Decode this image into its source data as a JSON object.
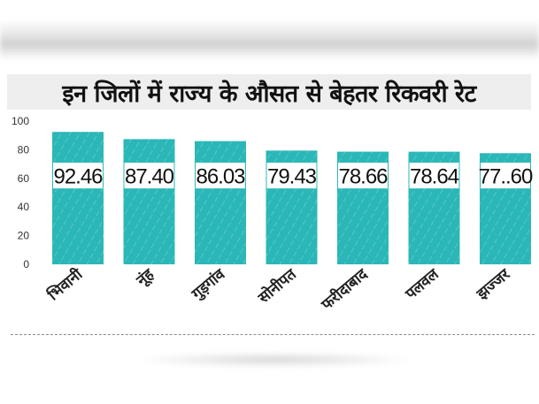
{
  "title": "इन जिलों में राज्य के औसत से बेहतर रिकवरी रेट",
  "colors": {
    "bar": "#2bb7b7",
    "label_box": "#ffffff",
    "title_bg": "#eeeeee"
  },
  "chart_data": {
    "type": "bar",
    "categories": [
      "भिवानी",
      "नूंह",
      "गुड़गांव",
      "सोनीपत",
      "फरीदाबाद",
      "पलवल",
      "झज्जर"
    ],
    "values": [
      92.46,
      87.4,
      86.03,
      79.43,
      78.66,
      78.64,
      77.6
    ],
    "value_labels": [
      "92.46",
      "87.40",
      "86.03",
      "79.43",
      "78.66",
      "78.64",
      "77..60"
    ],
    "ylim": [
      0,
      100
    ],
    "yticks": [
      0,
      20,
      40,
      60,
      80,
      100
    ],
    "grid": false,
    "legend": "none"
  }
}
